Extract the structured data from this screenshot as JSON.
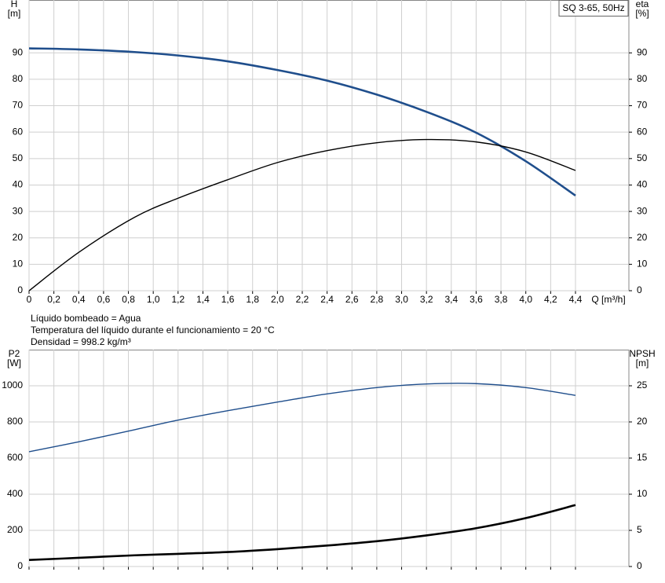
{
  "chart_data": [
    {
      "type": "line",
      "title": "SQ 3-65, 50Hz",
      "ylabel": [
        "H",
        "[m]"
      ],
      "y2label": [
        "eta",
        "[%]"
      ],
      "xlabel": "Q [m³/h]",
      "x": [
        0,
        0.4,
        0.85,
        1.2,
        1.6,
        2.0,
        2.4,
        2.8,
        3.2,
        3.6,
        4.0,
        4.4
      ],
      "xlim": [
        0,
        4.83
      ],
      "xticks": [
        0,
        {
          "value": 0.2,
          "label": "0,2"
        },
        {
          "value": 0.4,
          "label": "0,4"
        },
        {
          "value": 0.6,
          "label": "0,6"
        },
        {
          "value": 0.8,
          "label": "0,8"
        },
        {
          "value": 1.0,
          "label": "1,0"
        },
        {
          "value": 1.2,
          "label": "1,2"
        },
        {
          "value": 1.4,
          "label": "1,4"
        },
        {
          "value": 1.6,
          "label": "1,6"
        },
        {
          "value": 1.8,
          "label": "1,8"
        },
        {
          "value": 2.0,
          "label": "2,0"
        },
        {
          "value": 2.2,
          "label": "2,2"
        },
        {
          "value": 2.4,
          "label": "2,4"
        },
        {
          "value": 2.6,
          "label": "2,6"
        },
        {
          "value": 2.8,
          "label": "2,8"
        },
        {
          "value": 3.0,
          "label": "3,0"
        },
        {
          "value": 3.2,
          "label": "3,2"
        },
        {
          "value": 3.4,
          "label": "3,4"
        },
        {
          "value": 3.6,
          "label": "3,6"
        },
        {
          "value": 3.8,
          "label": "3,8"
        },
        {
          "value": 4.0,
          "label": "4,0"
        },
        {
          "value": 4.2,
          "label": "4,2"
        },
        {
          "value": 4.4,
          "label": "4,4"
        }
      ],
      "ylim": [
        0,
        110
      ],
      "yticks": [
        0,
        10,
        20,
        30,
        40,
        50,
        60,
        70,
        80,
        90
      ],
      "y2lim": [
        0,
        110
      ],
      "y2ticks": [
        0,
        10,
        20,
        30,
        40,
        50,
        60,
        70,
        80,
        90
      ],
      "grid": true,
      "series": [
        {
          "name": "H",
          "color": "#1f4e8c",
          "values": [
            91.7,
            91.3,
            90.3,
            89,
            86.8,
            83.5,
            79.5,
            74.2,
            67.7,
            59.8,
            49,
            36
          ]
        },
        {
          "name": "eta",
          "color": "#000000",
          "axis": "y2",
          "values": [
            0,
            14.5,
            27.8,
            35,
            42,
            48.5,
            53,
            56,
            57.2,
            56.3,
            52.5,
            45.5
          ]
        }
      ]
    },
    {
      "type": "line",
      "ylabel": [
        "P2",
        "[W]"
      ],
      "y2label": [
        "NPSH",
        "[m]"
      ],
      "x": [
        0,
        0.4,
        0.85,
        1.2,
        1.6,
        2.0,
        2.4,
        2.8,
        3.2,
        3.6,
        4.0,
        4.4
      ],
      "xlim": [
        0,
        4.83
      ],
      "xticks": [
        0,
        0.2,
        0.4,
        0.6,
        0.8,
        1.0,
        1.2,
        1.4,
        1.6,
        1.8,
        2.0,
        2.2,
        2.4,
        2.6,
        2.8,
        3.0,
        3.2,
        3.4,
        3.6,
        3.8,
        4.0,
        4.2,
        4.4
      ],
      "ylim": [
        0,
        1200
      ],
      "yticks": [
        0,
        200,
        400,
        600,
        800,
        1000
      ],
      "y2lim": [
        0,
        30
      ],
      "y2ticks": [
        0,
        5,
        10,
        15,
        20,
        25
      ],
      "grid": true,
      "series": [
        {
          "name": "P2",
          "color": "#1f4e8c",
          "values": [
            635,
            690,
            757,
            810,
            862,
            910,
            955,
            990,
            1010,
            1012,
            990,
            947
          ]
        },
        {
          "name": "NPSH",
          "color": "#000000",
          "axis": "y2",
          "values": [
            0.9,
            1.2,
            1.55,
            1.75,
            2.0,
            2.4,
            2.9,
            3.5,
            4.3,
            5.3,
            6.7,
            8.5
          ]
        }
      ]
    }
  ],
  "notes": [
    "Líquido bombeado = Agua",
    "Temperatura del líquido durante el funcionamiento = 20 °C",
    "Densidad = 998.2 kg/m³"
  ]
}
